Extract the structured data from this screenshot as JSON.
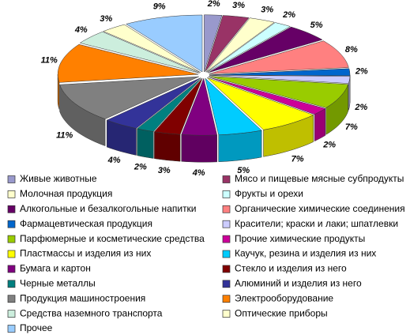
{
  "chart_data": {
    "type": "pie",
    "categories": [
      "Живые животные",
      "Мясо и пищевые мясные субпродукты",
      "Молочная продукция",
      "Фрукты и орехи",
      "Алкогольные и безалкогольные напитки",
      "Органические химические соединения",
      "Фармацевтическая продукция",
      "Красители; краски и лаки; шпатлевки",
      "Парфюмерные и косметические средства",
      "Прочие химические продукты",
      "Пластмассы и изделия из них",
      "Каучук, резина и изделия из них",
      "Бумага и картон",
      "Стекло и изделия из него",
      "Черные металлы",
      "Алюминий и изделия из него",
      "Продукция машиностроения",
      "Электрооборудование",
      "Средства наземного транспорта",
      "Оптические приборы",
      "Прочее"
    ],
    "values": [
      2,
      3,
      3,
      2,
      5,
      8,
      2,
      2,
      7,
      2,
      7,
      5,
      4,
      3,
      2,
      4,
      11,
      11,
      4,
      3,
      9
    ],
    "value_labels": [
      "2%",
      "3%",
      "3%",
      "2%",
      "5%",
      "8%",
      "2%",
      "2%",
      "7%",
      "2%",
      "7%",
      "5%",
      "4%",
      "3%",
      "2%",
      "4%",
      "11%",
      "11%",
      "4%",
      "3%",
      "9%"
    ],
    "colors": [
      "#9999cc",
      "#993366",
      "#ffffcc",
      "#ccffff",
      "#660066",
      "#ff8080",
      "#0066cc",
      "#ccccff",
      "#99cc00",
      "#cc0099",
      "#ffff00",
      "#00ccff",
      "#800080",
      "#800000",
      "#008080",
      "#333399",
      "#808080",
      "#ff8000",
      "#cceedd",
      "#ffffcc",
      "#99ccff"
    ]
  }
}
